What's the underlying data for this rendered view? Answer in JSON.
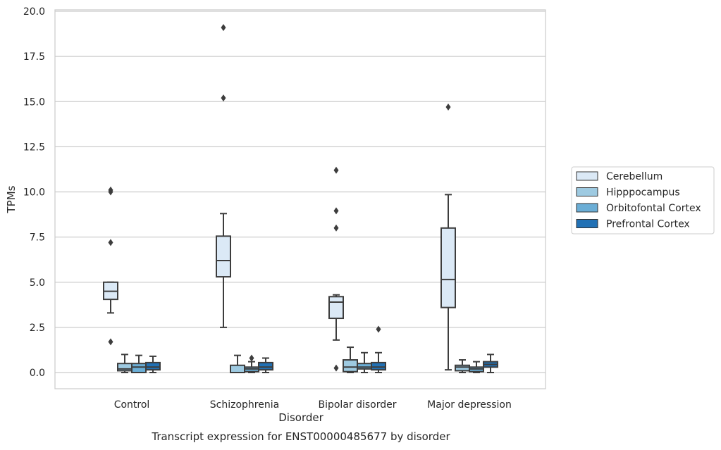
{
  "chart_data": {
    "type": "box",
    "title": "Transcript expression for ENST00000485677 by disorder",
    "xlabel": "Disorder",
    "ylabel": "TPMs",
    "ylim": [
      -0.9,
      20.1
    ],
    "yticks": [
      "0.0",
      "2.5",
      "5.0",
      "7.5",
      "10.0",
      "12.5",
      "15.0",
      "17.5",
      "20.0"
    ],
    "grid": "horizontal",
    "legend_position": "right",
    "categories": [
      "Control",
      "Schizophrenia",
      "Bipolar disorder",
      "Major depression"
    ],
    "series": [
      {
        "name": "Cerebellum",
        "color": "#dbe9f6",
        "boxes": [
          {
            "whisker_low": 3.3,
            "q1": 4.05,
            "median": 4.5,
            "q3": 5.0,
            "whisker_high": 5.0,
            "outliers": [
              10.1,
              10.0,
              7.2,
              1.7
            ]
          },
          {
            "whisker_low": 2.5,
            "q1": 5.3,
            "median": 6.2,
            "q3": 7.55,
            "whisker_high": 8.8,
            "outliers": [
              19.1,
              15.2
            ]
          },
          {
            "whisker_low": 1.8,
            "q1": 3.0,
            "median": 3.9,
            "q3": 4.2,
            "whisker_high": 4.3,
            "outliers": [
              11.2,
              8.95,
              8.0,
              0.25
            ]
          },
          {
            "whisker_low": 0.15,
            "q1": 3.6,
            "median": 5.15,
            "q3": 8.0,
            "whisker_high": 9.85,
            "outliers": [
              14.7
            ]
          }
        ]
      },
      {
        "name": "Hipppocampus",
        "color": "#9ecae1",
        "boxes": [
          {
            "whisker_low": 0.0,
            "q1": 0.1,
            "median": 0.2,
            "q3": 0.5,
            "whisker_high": 1.0,
            "outliers": []
          },
          {
            "whisker_low": 0.0,
            "q1": 0.0,
            "median": 0.0,
            "q3": 0.4,
            "whisker_high": 0.95,
            "outliers": []
          },
          {
            "whisker_low": 0.0,
            "q1": 0.05,
            "median": 0.3,
            "q3": 0.7,
            "whisker_high": 1.4,
            "outliers": []
          },
          {
            "whisker_low": 0.0,
            "q1": 0.1,
            "median": 0.3,
            "q3": 0.4,
            "whisker_high": 0.7,
            "outliers": []
          }
        ]
      },
      {
        "name": "Orbitofontal Cortex",
        "color": "#6baed6",
        "boxes": [
          {
            "whisker_low": 0.0,
            "q1": 0.0,
            "median": 0.3,
            "q3": 0.5,
            "whisker_high": 0.95,
            "outliers": []
          },
          {
            "whisker_low": 0.0,
            "q1": 0.05,
            "median": 0.2,
            "q3": 0.3,
            "whisker_high": 0.6,
            "outliers": [
              0.8
            ]
          },
          {
            "whisker_low": 0.0,
            "q1": 0.2,
            "median": 0.3,
            "q3": 0.5,
            "whisker_high": 1.1,
            "outliers": []
          },
          {
            "whisker_low": 0.0,
            "q1": 0.05,
            "median": 0.2,
            "q3": 0.3,
            "whisker_high": 0.6,
            "outliers": []
          }
        ]
      },
      {
        "name": "Prefrontal Cortex",
        "color": "#2171b5",
        "boxes": [
          {
            "whisker_low": 0.0,
            "q1": 0.15,
            "median": 0.3,
            "q3": 0.55,
            "whisker_high": 0.9,
            "outliers": []
          },
          {
            "whisker_low": 0.0,
            "q1": 0.15,
            "median": 0.3,
            "q3": 0.55,
            "whisker_high": 0.8,
            "outliers": []
          },
          {
            "whisker_low": 0.0,
            "q1": 0.15,
            "median": 0.3,
            "q3": 0.55,
            "whisker_high": 1.1,
            "outliers": [
              2.4
            ]
          },
          {
            "whisker_low": 0.0,
            "q1": 0.3,
            "median": 0.45,
            "q3": 0.6,
            "whisker_high": 1.0,
            "outliers": []
          }
        ]
      }
    ]
  }
}
